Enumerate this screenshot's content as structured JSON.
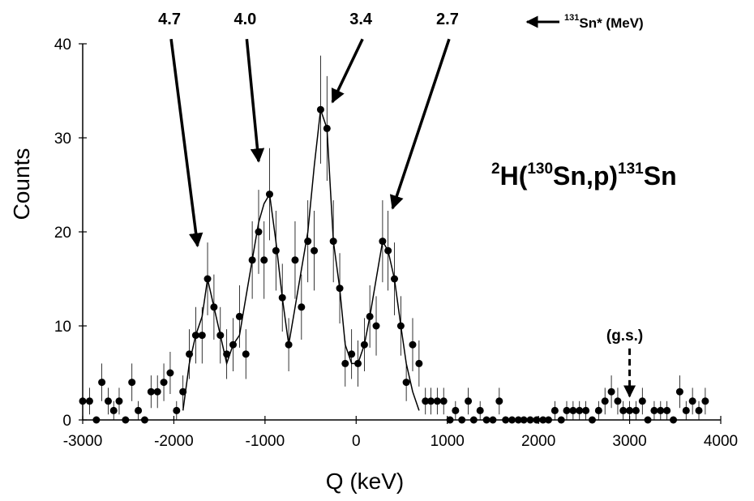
{
  "chart_data": {
    "type": "scatter",
    "xlabel": "Q (keV)",
    "ylabel": "Counts",
    "xlim": [
      -3000,
      4000
    ],
    "ylim": [
      0,
      40
    ],
    "xticks": [
      -3000,
      -2000,
      -1000,
      0,
      1000,
      2000,
      3000,
      4000
    ],
    "yticks": [
      0,
      10,
      20,
      30,
      40
    ],
    "grid": false,
    "reaction": {
      "a": "2",
      "b": "H(",
      "c": "130",
      "d": "Sn,p)",
      "e": "131",
      "f": "Sn"
    },
    "energy_unit_note": {
      "sup": "131",
      "text": "Sn* (MeV)"
    },
    "points": [
      {
        "x": -3000,
        "y": 2
      },
      {
        "x": -2925,
        "y": 2
      },
      {
        "x": -2850,
        "y": 0
      },
      {
        "x": -2790,
        "y": 4
      },
      {
        "x": -2720,
        "y": 2
      },
      {
        "x": -2660,
        "y": 1
      },
      {
        "x": -2600,
        "y": 2
      },
      {
        "x": -2530,
        "y": 0
      },
      {
        "x": -2460,
        "y": 4
      },
      {
        "x": -2390,
        "y": 1
      },
      {
        "x": -2320,
        "y": 0
      },
      {
        "x": -2250,
        "y": 3
      },
      {
        "x": -2180,
        "y": 3
      },
      {
        "x": -2110,
        "y": 4
      },
      {
        "x": -2040,
        "y": 5
      },
      {
        "x": -1970,
        "y": 1
      },
      {
        "x": -1900,
        "y": 3
      },
      {
        "x": -1830,
        "y": 7
      },
      {
        "x": -1760,
        "y": 9
      },
      {
        "x": -1690,
        "y": 9
      },
      {
        "x": -1630,
        "y": 15
      },
      {
        "x": -1560,
        "y": 12
      },
      {
        "x": -1490,
        "y": 9
      },
      {
        "x": -1420,
        "y": 7
      },
      {
        "x": -1350,
        "y": 8
      },
      {
        "x": -1280,
        "y": 11
      },
      {
        "x": -1210,
        "y": 7
      },
      {
        "x": -1140,
        "y": 17
      },
      {
        "x": -1070,
        "y": 20
      },
      {
        "x": -1010,
        "y": 17
      },
      {
        "x": -950,
        "y": 24
      },
      {
        "x": -880,
        "y": 18
      },
      {
        "x": -810,
        "y": 13
      },
      {
        "x": -740,
        "y": 8
      },
      {
        "x": -670,
        "y": 17
      },
      {
        "x": -600,
        "y": 12
      },
      {
        "x": -530,
        "y": 19
      },
      {
        "x": -460,
        "y": 18
      },
      {
        "x": -390,
        "y": 33
      },
      {
        "x": -320,
        "y": 31
      },
      {
        "x": -250,
        "y": 19
      },
      {
        "x": -180,
        "y": 14
      },
      {
        "x": -120,
        "y": 6
      },
      {
        "x": -50,
        "y": 7
      },
      {
        "x": 20,
        "y": 6
      },
      {
        "x": 90,
        "y": 8
      },
      {
        "x": 150,
        "y": 11
      },
      {
        "x": 220,
        "y": 10
      },
      {
        "x": 290,
        "y": 19
      },
      {
        "x": 350,
        "y": 18
      },
      {
        "x": 420,
        "y": 15
      },
      {
        "x": 490,
        "y": 10
      },
      {
        "x": 550,
        "y": 4
      },
      {
        "x": 620,
        "y": 8
      },
      {
        "x": 690,
        "y": 6
      },
      {
        "x": 760,
        "y": 2
      },
      {
        "x": 820,
        "y": 2
      },
      {
        "x": 890,
        "y": 2
      },
      {
        "x": 960,
        "y": 2
      },
      {
        "x": 1030,
        "y": 0
      },
      {
        "x": 1090,
        "y": 1
      },
      {
        "x": 1160,
        "y": 0
      },
      {
        "x": 1230,
        "y": 2
      },
      {
        "x": 1290,
        "y": 0
      },
      {
        "x": 1360,
        "y": 1
      },
      {
        "x": 1430,
        "y": 0
      },
      {
        "x": 1500,
        "y": 0
      },
      {
        "x": 1570,
        "y": 2
      },
      {
        "x": 1640,
        "y": 0
      },
      {
        "x": 1710,
        "y": 0
      },
      {
        "x": 1780,
        "y": 0
      },
      {
        "x": 1840,
        "y": 0
      },
      {
        "x": 1910,
        "y": 0
      },
      {
        "x": 1980,
        "y": 0
      },
      {
        "x": 2050,
        "y": 0
      },
      {
        "x": 2110,
        "y": 0
      },
      {
        "x": 2180,
        "y": 1
      },
      {
        "x": 2250,
        "y": 0
      },
      {
        "x": 2310,
        "y": 1
      },
      {
        "x": 2380,
        "y": 1
      },
      {
        "x": 2450,
        "y": 1
      },
      {
        "x": 2520,
        "y": 1
      },
      {
        "x": 2590,
        "y": 0
      },
      {
        "x": 2660,
        "y": 1
      },
      {
        "x": 2730,
        "y": 2
      },
      {
        "x": 2800,
        "y": 3
      },
      {
        "x": 2870,
        "y": 2
      },
      {
        "x": 2930,
        "y": 1
      },
      {
        "x": 3000,
        "y": 1
      },
      {
        "x": 3070,
        "y": 1
      },
      {
        "x": 3140,
        "y": 2
      },
      {
        "x": 3200,
        "y": 0
      },
      {
        "x": 3270,
        "y": 1
      },
      {
        "x": 3340,
        "y": 1
      },
      {
        "x": 3410,
        "y": 1
      },
      {
        "x": 3480,
        "y": 0
      },
      {
        "x": 3550,
        "y": 3
      },
      {
        "x": 3620,
        "y": 1
      },
      {
        "x": 3690,
        "y": 2
      },
      {
        "x": 3760,
        "y": 1
      },
      {
        "x": 3830,
        "y": 2
      }
    ],
    "fit_line": [
      {
        "x": -1900,
        "y": 1
      },
      {
        "x": -1830,
        "y": 6
      },
      {
        "x": -1760,
        "y": 9
      },
      {
        "x": -1690,
        "y": 11
      },
      {
        "x": -1630,
        "y": 15
      },
      {
        "x": -1560,
        "y": 12
      },
      {
        "x": -1490,
        "y": 9
      },
      {
        "x": -1420,
        "y": 6
      },
      {
        "x": -1350,
        "y": 8
      },
      {
        "x": -1280,
        "y": 9
      },
      {
        "x": -1210,
        "y": 13
      },
      {
        "x": -1140,
        "y": 17
      },
      {
        "x": -1070,
        "y": 21
      },
      {
        "x": -1010,
        "y": 23
      },
      {
        "x": -950,
        "y": 24
      },
      {
        "x": -880,
        "y": 19
      },
      {
        "x": -810,
        "y": 13
      },
      {
        "x": -740,
        "y": 8
      },
      {
        "x": -670,
        "y": 12
      },
      {
        "x": -600,
        "y": 16
      },
      {
        "x": -530,
        "y": 20
      },
      {
        "x": -460,
        "y": 27
      },
      {
        "x": -390,
        "y": 33
      },
      {
        "x": -320,
        "y": 31
      },
      {
        "x": -250,
        "y": 19
      },
      {
        "x": -180,
        "y": 14
      },
      {
        "x": -120,
        "y": 8
      },
      {
        "x": -50,
        "y": 6
      },
      {
        "x": 20,
        "y": 6
      },
      {
        "x": 90,
        "y": 8
      },
      {
        "x": 150,
        "y": 11
      },
      {
        "x": 220,
        "y": 15
      },
      {
        "x": 290,
        "y": 19
      },
      {
        "x": 350,
        "y": 18
      },
      {
        "x": 420,
        "y": 15
      },
      {
        "x": 490,
        "y": 10
      },
      {
        "x": 550,
        "y": 6
      },
      {
        "x": 620,
        "y": 3
      },
      {
        "x": 690,
        "y": 1
      }
    ],
    "arrows": [
      {
        "label": "4.7",
        "from": [
          -2030,
          40.5
        ],
        "to": [
          -1740,
          18.5
        ]
      },
      {
        "label": "4.0",
        "from": [
          -1200,
          40.5
        ],
        "to": [
          -1070,
          27.5
        ]
      },
      {
        "label": "3.4",
        "from": [
          70,
          40.5
        ],
        "to": [
          -260,
          33.8
        ]
      },
      {
        "label": "2.7",
        "from": [
          1020,
          40.5
        ],
        "to": [
          400,
          22.5
        ]
      }
    ],
    "gs_marker": {
      "label": "(g.s.)",
      "x": 3000,
      "from": 7.6,
      "to": 2.5
    }
  }
}
